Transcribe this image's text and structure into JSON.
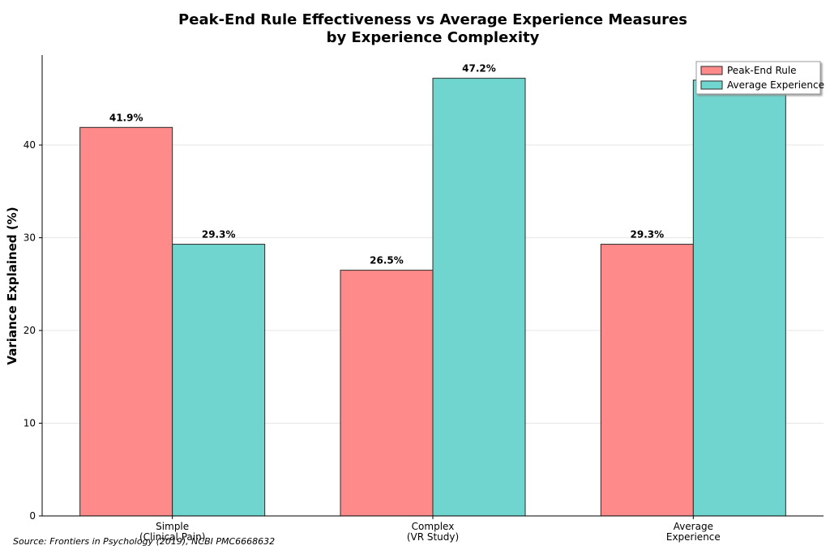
{
  "chart_data": {
    "type": "bar",
    "title": "Peak-End Rule Effectiveness vs Average Experience Measures\nby Experience Complexity",
    "y_label": "Variance Explained (%)",
    "source": "Source: Frontiers in Psychology (2019), NCBI PMC6668632",
    "categories": [
      "Simple\n(Clinical Pain)",
      "Complex\n(VR Study)",
      "Average\nExperience"
    ],
    "series": [
      {
        "name": "Peak-End Rule",
        "color": "#ff8a8a",
        "values": [
          41.9,
          26.5,
          29.3
        ],
        "value_labels": [
          "41.9%",
          "26.5%",
          "29.3%"
        ]
      },
      {
        "name": "Average Experience",
        "color": "#71d5cf",
        "values": [
          29.3,
          47.2,
          47.0
        ],
        "value_labels": [
          "29.3%",
          "47.2%",
          null
        ]
      }
    ],
    "ylim": [
      0,
      49.7
    ],
    "yticks": [
      0,
      10,
      20,
      30,
      40
    ],
    "grid": true,
    "legend": "upper right"
  }
}
